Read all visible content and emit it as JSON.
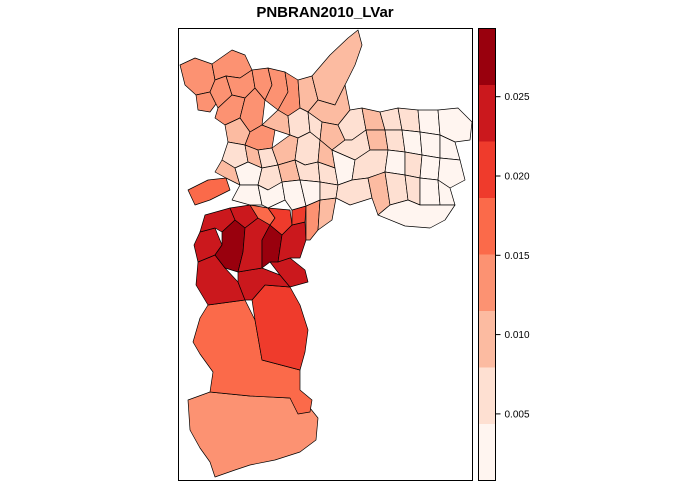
{
  "title": "PNBRAN2010_LVar",
  "legend": {
    "tick_labels": [
      "0.005",
      "0.010",
      "0.015",
      "0.020",
      "0.025"
    ],
    "tick_values": [
      0.005,
      0.01,
      0.015,
      0.02,
      0.025
    ],
    "range": [
      0.0008,
      0.0293
    ],
    "class_colors": [
      "#fff5f0",
      "#fee0d2",
      "#fcbba1",
      "#fc9272",
      "#fb6a4a",
      "#ef3b2c",
      "#cb181d",
      "#99000d"
    ]
  }
}
